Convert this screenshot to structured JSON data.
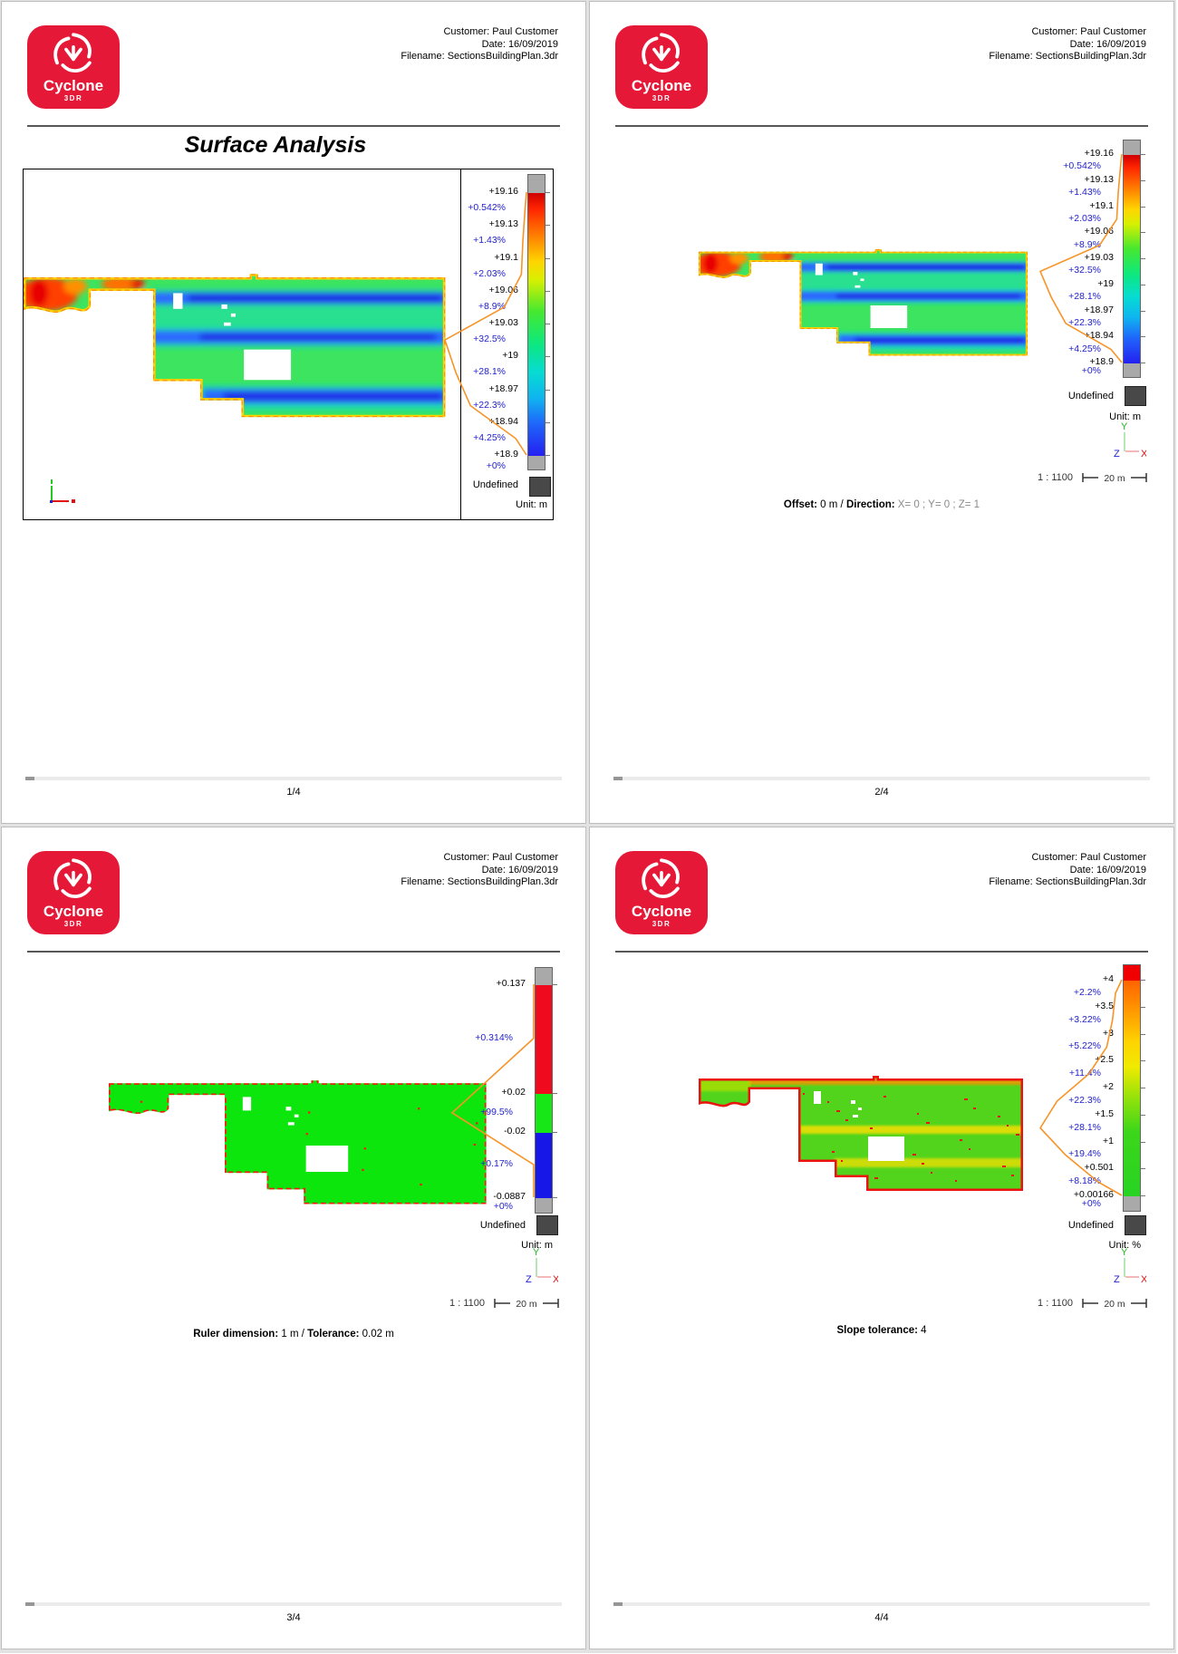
{
  "shared": {
    "header": {
      "customer": "Customer: Paul Customer",
      "date": "Date: 16/09/2019",
      "filename": "Filename: SectionsBuildingPlan.3dr"
    },
    "logo": {
      "brand": "Cyclone",
      "sub": "3DR",
      "color": "#e51937"
    },
    "scale_label": "1 : 1100",
    "ruler_label": "20 m",
    "axes": {
      "x": "X",
      "y": "Y",
      "z": "Z"
    },
    "colors": {
      "pct_label": "#2121cd",
      "curve": "#f79428",
      "cap_gray": "#a9a9a9",
      "undefined_swatch": "#484848"
    }
  },
  "pages": [
    {
      "footer": "1/4",
      "title": "Surface Analysis",
      "unit_label": "Unit: m",
      "undefined_label": "Undefined",
      "legend": {
        "curve_max_pct": 32.5,
        "colorbar": {
          "cap_top": "#a9a9a9",
          "cap_bottom": "#a9a9a9",
          "stops": [
            [
              "0%",
              "#cf0000"
            ],
            [
              "6%",
              "#ff2500"
            ],
            [
              "16%",
              "#ff7d00"
            ],
            [
              "26%",
              "#ffd400"
            ],
            [
              "33%",
              "#d8f000"
            ],
            [
              "45%",
              "#46e830"
            ],
            [
              "57%",
              "#0ee87c"
            ],
            [
              "68%",
              "#06dcd2"
            ],
            [
              "78%",
              "#0fb4f0"
            ],
            [
              "88%",
              "#1f64fa"
            ],
            [
              "100%",
              "#2420f0"
            ]
          ]
        },
        "entries": [
          {
            "t": "+19.16",
            "k": "v",
            "p": 0
          },
          {
            "t": "+0.542%",
            "k": "p",
            "p": 0.0625
          },
          {
            "t": "+19.13",
            "k": "v",
            "p": 0.125
          },
          {
            "t": "+1.43%",
            "k": "p",
            "p": 0.1875
          },
          {
            "t": "+19.1",
            "k": "v",
            "p": 0.25
          },
          {
            "t": "+2.03%",
            "k": "p",
            "p": 0.3125
          },
          {
            "t": "+19.06",
            "k": "v",
            "p": 0.375
          },
          {
            "t": "+8.9%",
            "k": "p",
            "p": 0.4375
          },
          {
            "t": "+19.03",
            "k": "v",
            "p": 0.5
          },
          {
            "t": "+32.5%",
            "k": "p",
            "p": 0.5625
          },
          {
            "t": "+19",
            "k": "v",
            "p": 0.625
          },
          {
            "t": "+28.1%",
            "k": "p",
            "p": 0.6875
          },
          {
            "t": "+18.97",
            "k": "v",
            "p": 0.75
          },
          {
            "t": "+22.3%",
            "k": "p",
            "p": 0.8125
          },
          {
            "t": "+18.94",
            "k": "v",
            "p": 0.875
          },
          {
            "t": "+4.25%",
            "k": "p",
            "p": 0.9375
          },
          {
            "t": "+18.9",
            "k": "v",
            "p": 1
          },
          {
            "t": "+0%",
            "k": "p",
            "p": 1.045
          }
        ]
      }
    },
    {
      "footer": "2/4",
      "unit_label": "Unit: m",
      "undefined_label": "Undefined",
      "annotation": [
        {
          "t": "Offset:",
          "b": true
        },
        {
          "t": " 0 m / "
        },
        {
          "t": "Direction:",
          "b": true
        },
        {
          "t": " X= 0 ; Y= 0 ; Z= 1",
          "gray": true
        }
      ],
      "legend": {
        "curve_max_pct": 32.5,
        "colorbar": {
          "cap_top": "#a9a9a9",
          "cap_bottom": "#a9a9a9",
          "stops": [
            [
              "0%",
              "#cf0000"
            ],
            [
              "6%",
              "#ff2500"
            ],
            [
              "16%",
              "#ff7d00"
            ],
            [
              "26%",
              "#ffd400"
            ],
            [
              "33%",
              "#d8f000"
            ],
            [
              "45%",
              "#46e830"
            ],
            [
              "57%",
              "#0ee87c"
            ],
            [
              "68%",
              "#06dcd2"
            ],
            [
              "78%",
              "#0fb4f0"
            ],
            [
              "88%",
              "#1f64fa"
            ],
            [
              "100%",
              "#2420f0"
            ]
          ]
        },
        "entries": [
          {
            "t": "+19.16",
            "k": "v",
            "p": 0
          },
          {
            "t": "+0.542%",
            "k": "p",
            "p": 0.0625
          },
          {
            "t": "+19.13",
            "k": "v",
            "p": 0.125
          },
          {
            "t": "+1.43%",
            "k": "p",
            "p": 0.1875
          },
          {
            "t": "+19.1",
            "k": "v",
            "p": 0.25
          },
          {
            "t": "+2.03%",
            "k": "p",
            "p": 0.3125
          },
          {
            "t": "+19.06",
            "k": "v",
            "p": 0.375
          },
          {
            "t": "+8.9%",
            "k": "p",
            "p": 0.4375
          },
          {
            "t": "+19.03",
            "k": "v",
            "p": 0.5
          },
          {
            "t": "+32.5%",
            "k": "p",
            "p": 0.5625
          },
          {
            "t": "+19",
            "k": "v",
            "p": 0.625
          },
          {
            "t": "+28.1%",
            "k": "p",
            "p": 0.6875
          },
          {
            "t": "+18.97",
            "k": "v",
            "p": 0.75
          },
          {
            "t": "+22.3%",
            "k": "p",
            "p": 0.8125
          },
          {
            "t": "+18.94",
            "k": "v",
            "p": 0.875
          },
          {
            "t": "+4.25%",
            "k": "p",
            "p": 0.9375
          },
          {
            "t": "+18.9",
            "k": "v",
            "p": 1
          },
          {
            "t": "+0%",
            "k": "p",
            "p": 1.045
          }
        ]
      }
    },
    {
      "footer": "3/4",
      "unit_label": "Unit: m",
      "undefined_label": "Undefined",
      "annotation": [
        {
          "t": "Ruler dimension:",
          "b": true
        },
        {
          "t": " 1 m / "
        },
        {
          "t": "Tolerance:",
          "b": true
        },
        {
          "t": " 0.02 m"
        }
      ],
      "legend": {
        "curve_max_pct": 99.5,
        "colorbar": {
          "cap_top": "#a9a9a9",
          "cap_bottom": "#a9a9a9",
          "stops": [
            [
              "0%",
              "#f00a1e"
            ],
            [
              "51.1%",
              "#f00a1e"
            ],
            [
              "51.1%",
              "#17e617"
            ],
            [
              "69.4%",
              "#17e617"
            ],
            [
              "69.4%",
              "#1717e8"
            ],
            [
              "100%",
              "#1717e8"
            ]
          ]
        },
        "entries": [
          {
            "t": "+0.137",
            "k": "v",
            "p": 0
          },
          {
            "t": "+0.314%",
            "k": "p",
            "p": 0.255
          },
          {
            "t": "+0.02",
            "k": "v",
            "p": 0.511
          },
          {
            "t": "+99.5%",
            "k": "p",
            "p": 0.604
          },
          {
            "t": "-0.02",
            "k": "v",
            "p": 0.694
          },
          {
            "t": "+0.17%",
            "k": "p",
            "p": 0.847
          },
          {
            "t": "-0.0887",
            "k": "v",
            "p": 1
          },
          {
            "t": "+0%",
            "k": "p",
            "p": 1.045
          }
        ]
      }
    },
    {
      "footer": "4/4",
      "unit_label": "Unit: %",
      "undefined_label": "Undefined",
      "annotation": [
        {
          "t": "Slope tolerance:",
          "b": true
        },
        {
          "t": " 4"
        }
      ],
      "legend": {
        "curve_max_pct": 28.1,
        "colorbar": {
          "cap_top": "#f00000",
          "cap_bottom": "#a9a9a9",
          "stops": [
            [
              "0%",
              "#ff6400"
            ],
            [
              "12%",
              "#ff9000"
            ],
            [
              "28%",
              "#ffd200"
            ],
            [
              "40%",
              "#f0ea00"
            ],
            [
              "54%",
              "#96e20a"
            ],
            [
              "70%",
              "#3cd61a"
            ],
            [
              "100%",
              "#27d323"
            ]
          ]
        },
        "entries": [
          {
            "t": "+4",
            "k": "v",
            "p": 0
          },
          {
            "t": "+2.2%",
            "k": "p",
            "p": 0.0625
          },
          {
            "t": "+3.5",
            "k": "v",
            "p": 0.125
          },
          {
            "t": "+3.22%",
            "k": "p",
            "p": 0.1875
          },
          {
            "t": "+3",
            "k": "v",
            "p": 0.25
          },
          {
            "t": "+5.22%",
            "k": "p",
            "p": 0.3125
          },
          {
            "t": "+2.5",
            "k": "v",
            "p": 0.375
          },
          {
            "t": "+11.4%",
            "k": "p",
            "p": 0.4375
          },
          {
            "t": "+2",
            "k": "v",
            "p": 0.5
          },
          {
            "t": "+22.3%",
            "k": "p",
            "p": 0.5625
          },
          {
            "t": "+1.5",
            "k": "v",
            "p": 0.625
          },
          {
            "t": "+28.1%",
            "k": "p",
            "p": 0.6875
          },
          {
            "t": "+1",
            "k": "v",
            "p": 0.75
          },
          {
            "t": "+19.4%",
            "k": "p",
            "p": 0.8125
          },
          {
            "t": "+0.501",
            "k": "v",
            "p": 0.875
          },
          {
            "t": "+8.18%",
            "k": "p",
            "p": 0.9375
          },
          {
            "t": "+0.00166",
            "k": "v",
            "p": 1
          },
          {
            "t": "+0%",
            "k": "p",
            "p": 1.042
          }
        ]
      }
    }
  ]
}
